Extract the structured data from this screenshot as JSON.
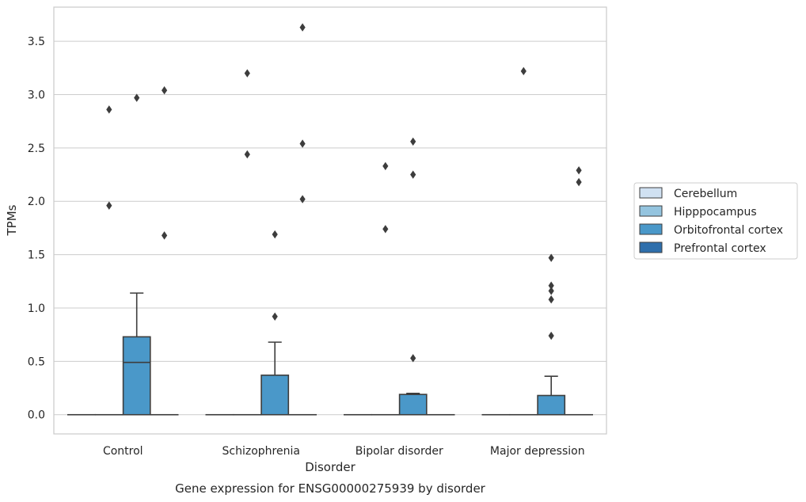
{
  "chart_data": {
    "type": "box",
    "title": "Gene expression for ENSG00000275939 by disorder",
    "xlabel": "Disorder",
    "ylabel": "TPMs",
    "ylim": [
      -0.18,
      3.82
    ],
    "yticks": [
      "0.0",
      "0.5",
      "1.0",
      "1.5",
      "2.0",
      "2.5",
      "3.0",
      "3.5"
    ],
    "grid": true,
    "legend_position": "right",
    "categories": [
      "Control",
      "Schizophrenia",
      "Bipolar disorder",
      "Major depression"
    ],
    "series": [
      {
        "name": "Cerebellum",
        "color": "#d0e1f2",
        "boxes": [
          {
            "q1": 0,
            "median": 0,
            "q3": 0,
            "whisker_low": 0,
            "whisker_high": 0,
            "outliers": []
          },
          {
            "q1": 0,
            "median": 0,
            "q3": 0,
            "whisker_low": 0,
            "whisker_high": 0,
            "outliers": []
          },
          {
            "q1": 0,
            "median": 0,
            "q3": 0,
            "whisker_low": 0,
            "whisker_high": 0,
            "outliers": []
          },
          {
            "q1": 0,
            "median": 0,
            "q3": 0,
            "whisker_low": 0,
            "whisker_high": 0,
            "outliers": []
          }
        ]
      },
      {
        "name": "Hipppocampus",
        "color": "#94c4df",
        "boxes": [
          {
            "q1": 0,
            "median": 0,
            "q3": 0,
            "whisker_low": 0,
            "whisker_high": 0,
            "outliers": [
              1.96,
              2.86
            ]
          },
          {
            "q1": 0,
            "median": 0,
            "q3": 0,
            "whisker_low": 0,
            "whisker_high": 0,
            "outliers": [
              2.44,
              3.2
            ]
          },
          {
            "q1": 0,
            "median": 0,
            "q3": 0,
            "whisker_low": 0,
            "whisker_high": 0,
            "outliers": [
              1.74,
              2.33
            ]
          },
          {
            "q1": 0,
            "median": 0,
            "q3": 0,
            "whisker_low": 0,
            "whisker_high": 0,
            "outliers": [
              3.22
            ]
          }
        ]
      },
      {
        "name": "Orbitofrontal cortex",
        "color": "#4a98c9",
        "boxes": [
          {
            "q1": 0,
            "median": 0.49,
            "q3": 0.73,
            "whisker_low": 0,
            "whisker_high": 1.14,
            "outliers": [
              2.97
            ]
          },
          {
            "q1": 0,
            "median": 0,
            "q3": 0.37,
            "whisker_low": 0,
            "whisker_high": 0.68,
            "outliers": [
              0.92,
              1.69
            ]
          },
          {
            "q1": 0,
            "median": 0,
            "q3": 0.19,
            "whisker_low": 0,
            "whisker_high": 0.2,
            "outliers": [
              0.53,
              2.25,
              2.56
            ]
          },
          {
            "q1": 0,
            "median": 0,
            "q3": 0.18,
            "whisker_low": 0,
            "whisker_high": 0.36,
            "outliers": [
              0.74,
              1.08,
              1.16,
              1.21,
              1.47
            ]
          }
        ]
      },
      {
        "name": "Prefrontal cortex",
        "color": "#2e6fac",
        "boxes": [
          {
            "q1": 0,
            "median": 0,
            "q3": 0,
            "whisker_low": 0,
            "whisker_high": 0,
            "outliers": [
              1.68,
              3.04
            ]
          },
          {
            "q1": 0,
            "median": 0,
            "q3": 0,
            "whisker_low": 0,
            "whisker_high": 0,
            "outliers": [
              2.02,
              2.54,
              3.63
            ]
          },
          {
            "q1": 0,
            "median": 0,
            "q3": 0,
            "whisker_low": 0,
            "whisker_high": 0,
            "outliers": []
          },
          {
            "q1": 0,
            "median": 0,
            "q3": 0,
            "whisker_low": 0,
            "whisker_high": 0,
            "outliers": [
              2.18,
              2.29
            ]
          }
        ]
      }
    ]
  }
}
